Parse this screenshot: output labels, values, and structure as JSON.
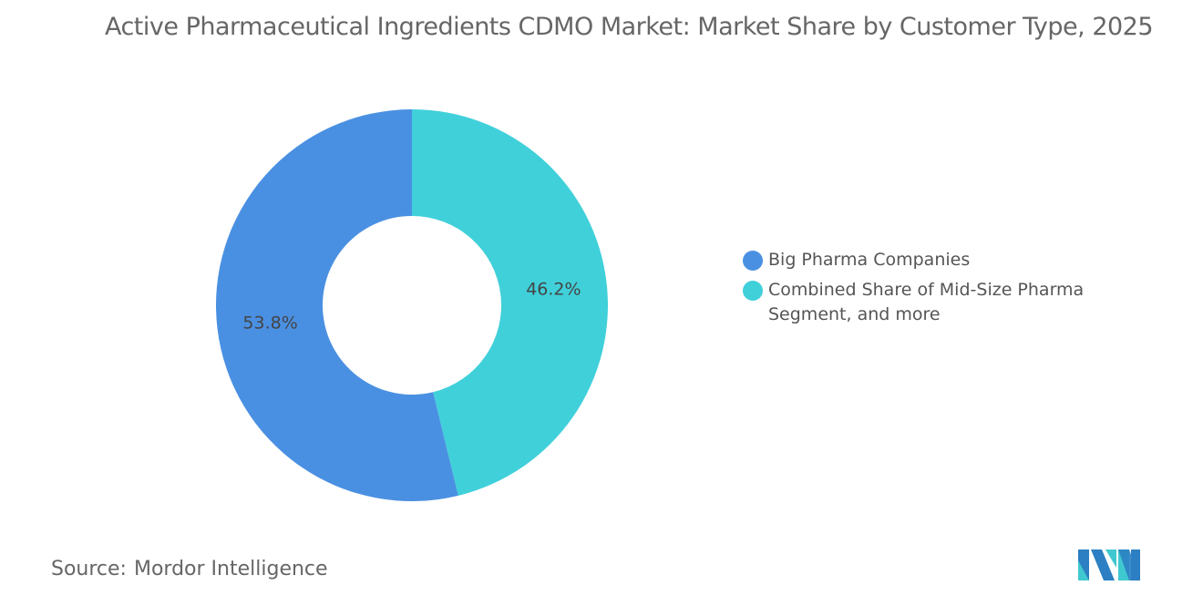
{
  "title": "Active Pharmaceutical Ingredients CDMO Market: Market Share by Customer Type, 2025",
  "chart_data": {
    "type": "pie",
    "variant": "donut",
    "title": "Active Pharmaceutical Ingredients CDMO Market: Market Share by Customer Type, 2025",
    "categories": [
      "Big Pharma Companies",
      "Combined Share of Mid-Size Pharma Segment, and more"
    ],
    "values": [
      53.8,
      46.2
    ],
    "labels": [
      "53.8%",
      "46.2%"
    ],
    "colors": [
      "#4a90e2",
      "#40d0da"
    ],
    "legend_position": "right"
  },
  "source": {
    "label": "Source:",
    "value": "Mordor Intelligence"
  },
  "logo": {
    "text": "Mordor Intelligence",
    "colors": [
      "#2b7fc2",
      "#40c8d0"
    ]
  }
}
